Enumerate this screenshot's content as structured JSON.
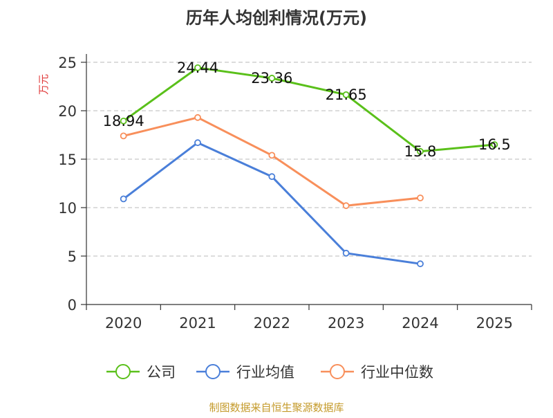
{
  "chart_data": {
    "type": "line",
    "title": "历年人均创利情况(万元)",
    "ylabel": "万元",
    "xlabel": "",
    "categories": [
      "2020",
      "2021",
      "2022",
      "2023",
      "2024",
      "2025"
    ],
    "ylim": [
      0,
      25
    ],
    "yticks": [
      0,
      5,
      10,
      15,
      20,
      25
    ],
    "grid": true,
    "legend_position": "bottom",
    "series": [
      {
        "name": "公司",
        "color": "#5ac01a",
        "values": [
          18.94,
          24.44,
          23.36,
          21.65,
          15.8,
          16.5
        ],
        "labels": [
          "18.94",
          "24.44",
          "23.36",
          "21.65",
          "15.8",
          "16.5"
        ]
      },
      {
        "name": "行业均值",
        "color": "#4a7fd9",
        "values": [
          10.9,
          16.7,
          13.2,
          5.3,
          4.2,
          null
        ],
        "labels": []
      },
      {
        "name": "行业中位数",
        "color": "#f88f5b",
        "values": [
          17.4,
          19.3,
          15.4,
          10.2,
          11.0,
          null
        ],
        "labels": []
      }
    ]
  },
  "footer": {
    "source": "制图数据来自恒生聚源数据库"
  },
  "colors": {
    "axis": "#333333",
    "grid": "#c8c8c8",
    "ylabel": "#e03a3a",
    "source": "#c49a2a"
  }
}
